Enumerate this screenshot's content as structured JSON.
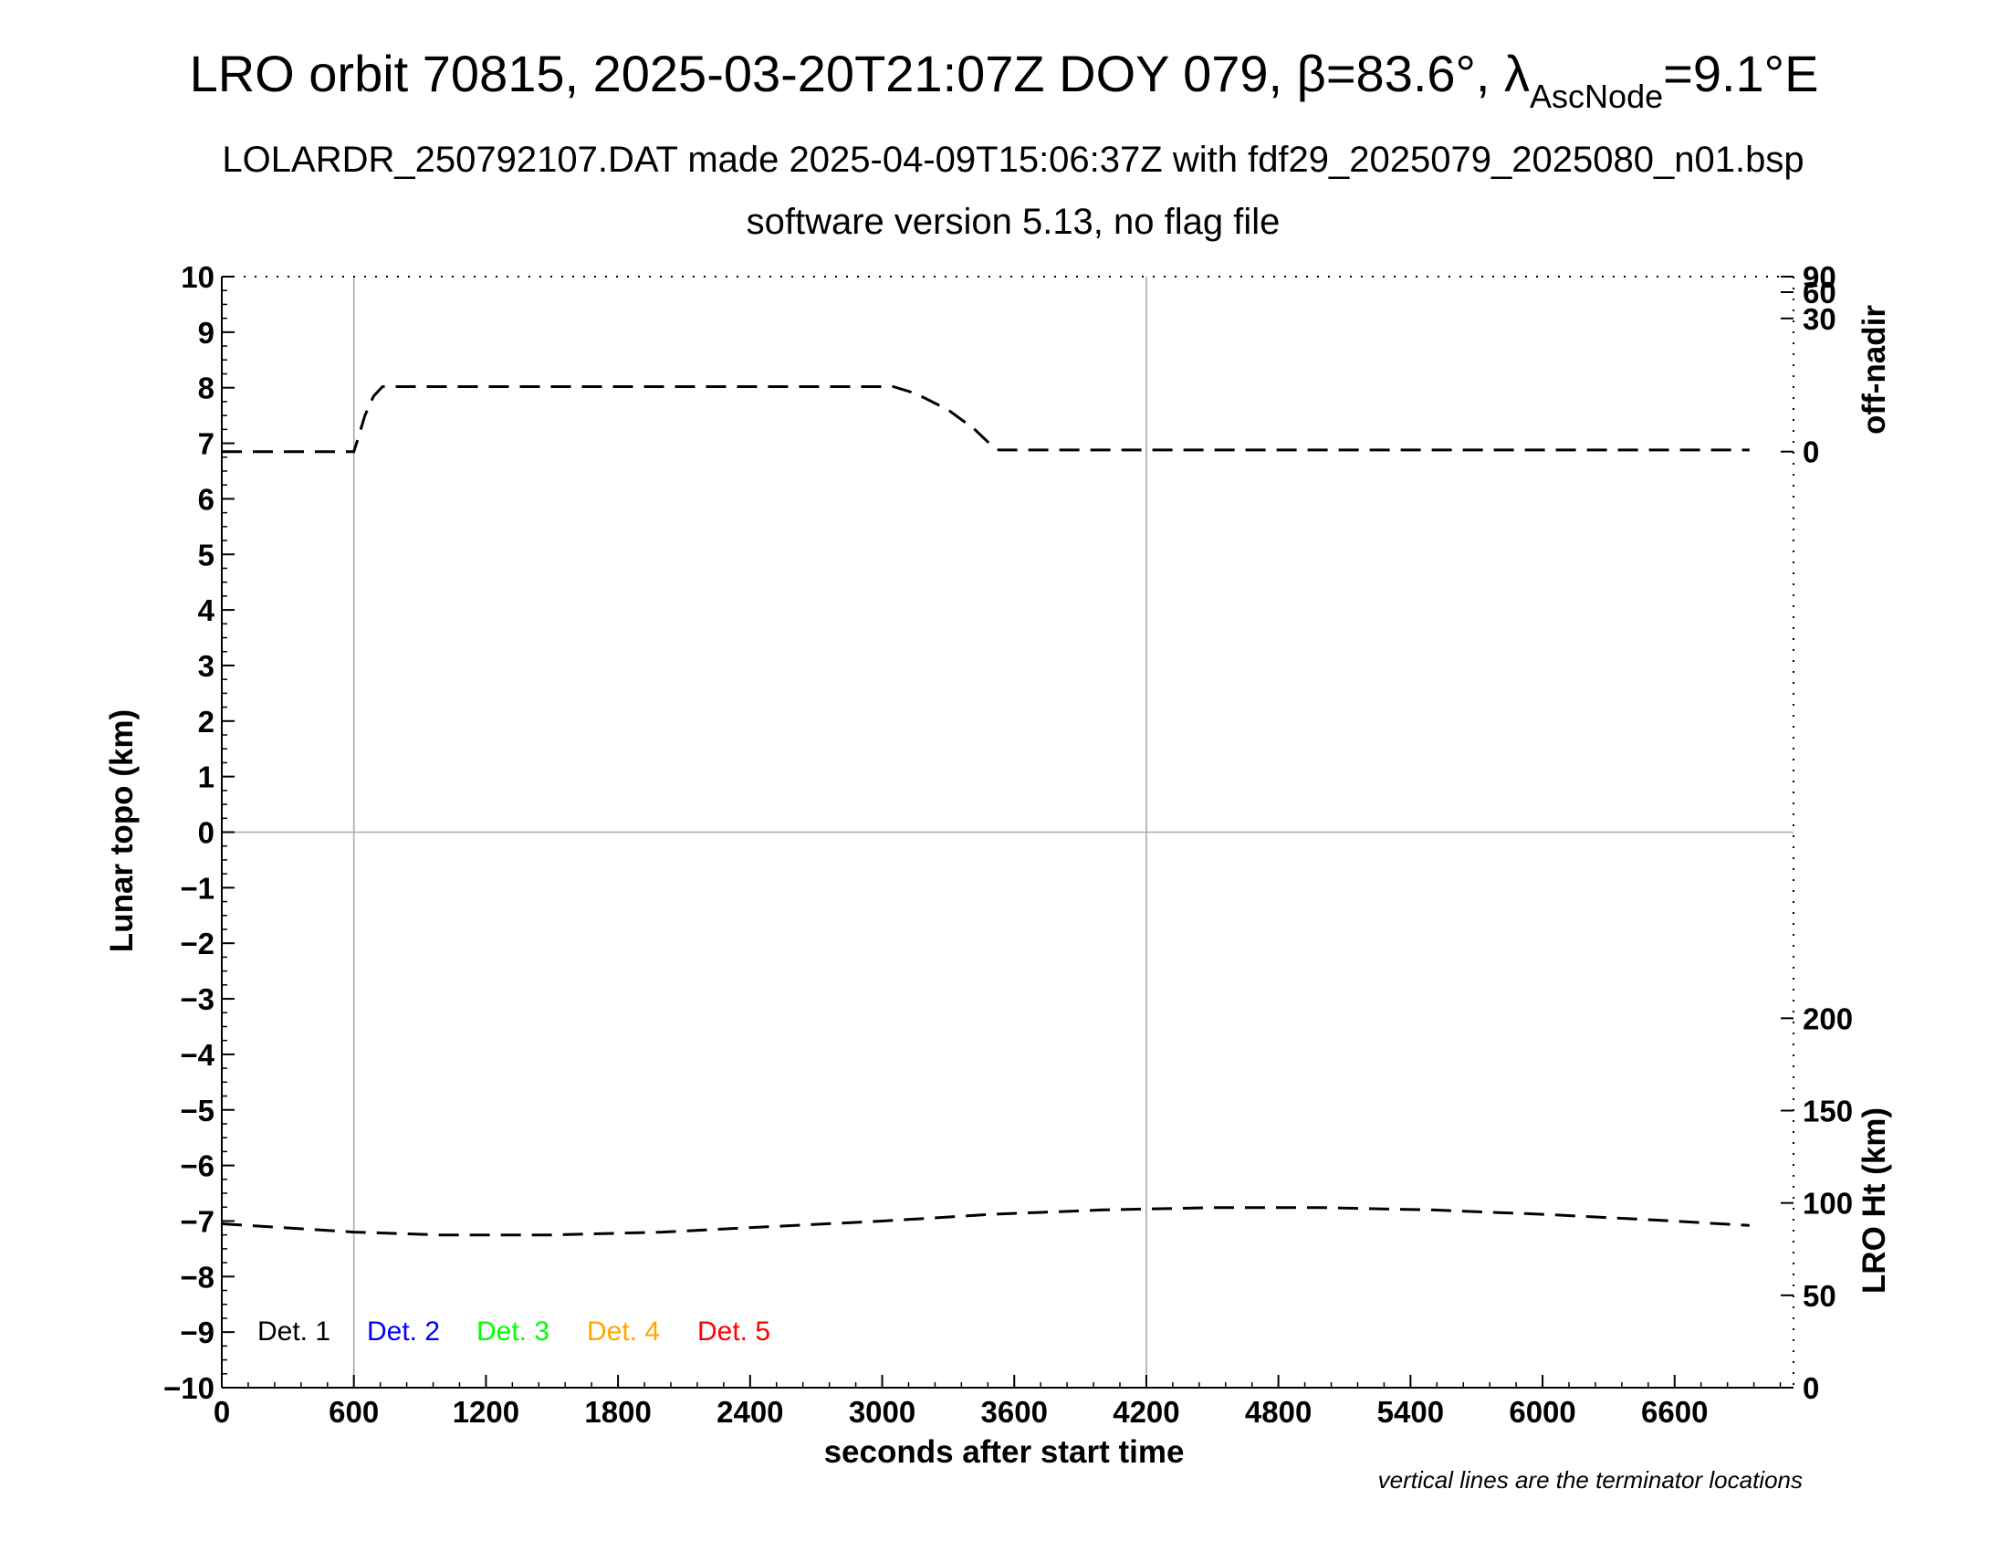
{
  "title": {
    "main": "LRO orbit 70815, 2025-03-20T21:07Z DOY 079, β=83.6°, λ",
    "subscript": "AscNode",
    "suffix": "=9.1°E"
  },
  "subtitle_line1": "LOLARDR_250792107.DAT made 2025-04-09T15:06:37Z with fdf29_2025079_2025080_n01.bsp",
  "subtitle_line2": "software version 5.13, no flag file",
  "footnote": "vertical lines are the terminator locations",
  "colors": {
    "axis": "#000000",
    "reference_lines": "#aaaaaa",
    "det1": "#000000",
    "det2": "#0000ff",
    "det3": "#00ff00",
    "det4": "#ffa500",
    "det5": "#ff0000"
  },
  "legend": [
    "Det. 1",
    "Det. 2",
    "Det. 3",
    "Det. 4",
    "Det. 5"
  ],
  "chart_data": {
    "type": "line",
    "xlabel": "seconds after start time",
    "ylabel": "Lunar topo (km)",
    "y2label_top": "off-nadir",
    "y2label_bottom": "LRO Ht (km)",
    "xlim": [
      0,
      7140
    ],
    "ylim": [
      -10,
      10
    ],
    "x_ticks": [
      0,
      600,
      1200,
      1800,
      2400,
      3000,
      3600,
      4200,
      4800,
      5400,
      6000,
      6600
    ],
    "y_ticks": [
      10,
      9,
      8,
      7,
      6,
      5,
      4,
      3,
      2,
      1,
      0,
      "−1",
      "−2",
      "−3",
      "−4",
      "−5",
      "−6",
      "−7",
      "−8",
      "−9",
      "−10"
    ],
    "offnadir_ticks": [
      "90",
      "60",
      "30",
      "0"
    ],
    "offnadir_tick_values": [
      90,
      60,
      30,
      0
    ],
    "ht_ticks": [
      "200",
      "150",
      "100",
      "50",
      "0"
    ],
    "ht_tick_values": [
      200,
      150,
      100,
      50,
      0
    ],
    "terminator_x": [
      600,
      4200
    ],
    "zero_line_y": 0,
    "series": [
      {
        "name": "off-nadir",
        "style": "dashed",
        "points": [
          [
            0,
            6.85
          ],
          [
            600,
            6.85
          ],
          [
            620,
            7.1
          ],
          [
            650,
            7.5
          ],
          [
            690,
            7.85
          ],
          [
            730,
            8.02
          ],
          [
            1500,
            8.02
          ],
          [
            3050,
            8.02
          ],
          [
            3150,
            7.9
          ],
          [
            3300,
            7.6
          ],
          [
            3420,
            7.25
          ],
          [
            3500,
            6.95
          ],
          [
            3530,
            6.88
          ],
          [
            6940,
            6.88
          ]
        ]
      },
      {
        "name": "LRO Ht",
        "style": "dashed",
        "points": [
          [
            0,
            -7.05
          ],
          [
            600,
            -7.2
          ],
          [
            1000,
            -7.25
          ],
          [
            1500,
            -7.25
          ],
          [
            2000,
            -7.2
          ],
          [
            2500,
            -7.1
          ],
          [
            3000,
            -7.0
          ],
          [
            3500,
            -6.88
          ],
          [
            4000,
            -6.8
          ],
          [
            4500,
            -6.76
          ],
          [
            5000,
            -6.76
          ],
          [
            5500,
            -6.8
          ],
          [
            6000,
            -6.88
          ],
          [
            6500,
            -6.98
          ],
          [
            6940,
            -7.08
          ]
        ]
      }
    ]
  }
}
